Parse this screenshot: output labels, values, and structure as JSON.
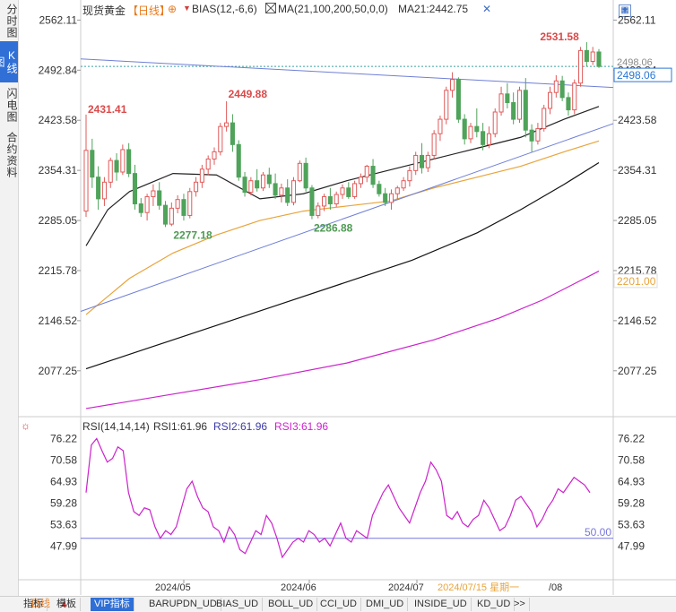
{
  "sidebar": {
    "tabs": [
      {
        "label": "分时图",
        "active": false
      },
      {
        "label": "K线图",
        "active": true
      },
      {
        "label": "闪电图",
        "active": false
      },
      {
        "label": "合约资料",
        "active": false
      }
    ]
  },
  "toolbar": {
    "symbol": "现货黄金",
    "period": "【日线】",
    "bias_label": "BIAS(12,-6,6)",
    "ma_label": "MA(21,100,200,50,0,0)",
    "ma21_label": "MA21:2442.75",
    "icons": [
      "plus-square-icon",
      "minus-square-icon",
      "window-icon",
      "grid-icon",
      "close-icon"
    ]
  },
  "price_axis": {
    "ticks": [
      "2562.11",
      "2492.84",
      "2423.58",
      "2354.31",
      "2285.05",
      "2215.78",
      "2146.52",
      "2077.25"
    ],
    "current_price": "2498.06",
    "current_price_color": "#2a77d6",
    "hidden_price": "2498.06",
    "line_price": "2201.00",
    "line_price_color": "#e8a43a"
  },
  "price_annotations": [
    {
      "text": "2431.41",
      "color": "#d94a4a"
    },
    {
      "text": "2449.88",
      "color": "#d94a4a"
    },
    {
      "text": "2277.18",
      "color": "#4e9a53"
    },
    {
      "text": "2286.88",
      "color": "#4e9a53"
    },
    {
      "text": "2531.58",
      "color": "#d94a4a"
    }
  ],
  "rsi_panel": {
    "label": "RSI(14,14,14)",
    "rsi1": "RSI1:61.96",
    "rsi2": "RSI2:61.96",
    "rsi3": "RSI3:61.96",
    "ticks": [
      "76.22",
      "70.58",
      "64.93",
      "59.28",
      "53.63",
      "47.99"
    ],
    "level_label": "50.00",
    "rsi_color": "#cc22cc",
    "level_color": "#7777dd"
  },
  "date_axis": {
    "labels": [
      "2024/05",
      "2024/06",
      "2024/07",
      "2024/07/15 星期一",
      "/08"
    ]
  },
  "bottom_bar": {
    "period": "日线",
    "tabs": [
      "指标",
      "模板",
      "VIP指标",
      "BARUPDN_UD",
      "BIAS_UD",
      "BOLL_UD",
      "CCI_UD",
      "DMI_UD",
      "INSIDE_UD",
      "KD_UD",
      ">>"
    ]
  },
  "chart_data": [
    {
      "type": "candlestick",
      "title": "现货黄金 日线",
      "ylim": [
        2020,
        2575
      ],
      "up_color": "#e05a5a",
      "down_color": "#4fa35a",
      "candles": [
        [
          2298,
          2431.41,
          2290,
          2382
        ],
        [
          2382,
          2398,
          2330,
          2345
        ],
        [
          2345,
          2360,
          2300,
          2315
        ],
        [
          2315,
          2345,
          2305,
          2338
        ],
        [
          2338,
          2372,
          2330,
          2368
        ],
        [
          2368,
          2378,
          2340,
          2352
        ],
        [
          2352,
          2390,
          2348,
          2383
        ],
        [
          2383,
          2392,
          2345,
          2350
        ],
        [
          2350,
          2362,
          2300,
          2308
        ],
        [
          2308,
          2316,
          2290,
          2296
        ],
        [
          2296,
          2322,
          2285,
          2318
        ],
        [
          2318,
          2335,
          2305,
          2326
        ],
        [
          2326,
          2338,
          2300,
          2306
        ],
        [
          2306,
          2312,
          2276,
          2280
        ],
        [
          2280,
          2310,
          2277.18,
          2302
        ],
        [
          2302,
          2320,
          2295,
          2314
        ],
        [
          2314,
          2322,
          2285,
          2292
        ],
        [
          2292,
          2330,
          2288,
          2325
        ],
        [
          2325,
          2345,
          2318,
          2338
        ],
        [
          2338,
          2362,
          2330,
          2356
        ],
        [
          2356,
          2375,
          2348,
          2370
        ],
        [
          2370,
          2386,
          2362,
          2380
        ],
        [
          2380,
          2420,
          2375,
          2415
        ],
        [
          2415,
          2449.88,
          2408,
          2420
        ],
        [
          2420,
          2432,
          2380,
          2390
        ],
        [
          2390,
          2396,
          2340,
          2345
        ],
        [
          2345,
          2352,
          2318,
          2324
        ],
        [
          2324,
          2345,
          2320,
          2340
        ],
        [
          2340,
          2356,
          2325,
          2330
        ],
        [
          2330,
          2352,
          2326,
          2348
        ],
        [
          2348,
          2358,
          2330,
          2336
        ],
        [
          2336,
          2350,
          2315,
          2320
        ],
        [
          2320,
          2336,
          2310,
          2330
        ],
        [
          2330,
          2342,
          2305,
          2310
        ],
        [
          2310,
          2345,
          2306,
          2340
        ],
        [
          2340,
          2368,
          2338,
          2364
        ],
        [
          2364,
          2372,
          2325,
          2330
        ],
        [
          2330,
          2334,
          2286.88,
          2292
        ],
        [
          2292,
          2310,
          2288,
          2305
        ],
        [
          2305,
          2322,
          2298,
          2318
        ],
        [
          2318,
          2330,
          2300,
          2308
        ],
        [
          2308,
          2325,
          2304,
          2321
        ],
        [
          2321,
          2335,
          2315,
          2330
        ],
        [
          2330,
          2338,
          2315,
          2318
        ],
        [
          2318,
          2340,
          2315,
          2336
        ],
        [
          2336,
          2350,
          2330,
          2345
        ],
        [
          2345,
          2362,
          2338,
          2360
        ],
        [
          2360,
          2370,
          2330,
          2335
        ],
        [
          2335,
          2340,
          2318,
          2322
        ],
        [
          2322,
          2330,
          2305,
          2310
        ],
        [
          2310,
          2328,
          2300,
          2322
        ],
        [
          2322,
          2333,
          2315,
          2330
        ],
        [
          2330,
          2345,
          2326,
          2340
        ],
        [
          2340,
          2360,
          2332,
          2354
        ],
        [
          2354,
          2380,
          2348,
          2375
        ],
        [
          2375,
          2392,
          2350,
          2358
        ],
        [
          2358,
          2380,
          2352,
          2375
        ],
        [
          2375,
          2410,
          2370,
          2405
        ],
        [
          2405,
          2430,
          2395,
          2425
        ],
        [
          2425,
          2470,
          2418,
          2465
        ],
        [
          2465,
          2490,
          2455,
          2480
        ],
        [
          2480,
          2483,
          2420,
          2425
        ],
        [
          2425,
          2432,
          2390,
          2398
        ],
        [
          2398,
          2420,
          2392,
          2415
        ],
        [
          2415,
          2440,
          2400,
          2408
        ],
        [
          2408,
          2420,
          2382,
          2390
        ],
        [
          2390,
          2415,
          2385,
          2405
        ],
        [
          2405,
          2440,
          2400,
          2435
        ],
        [
          2435,
          2470,
          2430,
          2460
        ],
        [
          2460,
          2475,
          2440,
          2448
        ],
        [
          2448,
          2462,
          2418,
          2425
        ],
        [
          2425,
          2470,
          2420,
          2465
        ],
        [
          2465,
          2482,
          2400,
          2410
        ],
        [
          2410,
          2418,
          2380,
          2395
        ],
        [
          2395,
          2420,
          2390,
          2412
        ],
        [
          2412,
          2445,
          2408,
          2440
        ],
        [
          2440,
          2470,
          2432,
          2462
        ],
        [
          2462,
          2486,
          2455,
          2478
        ],
        [
          2478,
          2485,
          2450,
          2455
        ],
        [
          2455,
          2462,
          2430,
          2438
        ],
        [
          2438,
          2480,
          2432,
          2475
        ],
        [
          2475,
          2525,
          2470,
          2520
        ],
        [
          2520,
          2531.58,
          2498,
          2505
        ],
        [
          2505,
          2525,
          2500,
          2518
        ],
        [
          2518,
          2522,
          2496,
          2498
        ]
      ]
    },
    {
      "type": "line",
      "name": "MA21",
      "ylim": [
        2020,
        2575
      ],
      "series": [
        {
          "name": "MA21",
          "color": "#222222",
          "x_start": 0,
          "points": [
            [
              0,
              2250
            ],
            [
              5,
              2300
            ],
            [
              10,
              2325
            ],
            [
              20,
              2350
            ],
            [
              30,
              2348
            ],
            [
              40,
              2315
            ],
            [
              50,
              2322
            ],
            [
              60,
              2340
            ],
            [
              70,
              2355
            ],
            [
              80,
              2370
            ],
            [
              90,
              2385
            ],
            [
              100,
              2400
            ],
            [
              110,
              2425
            ],
            [
              118,
              2442.75
            ]
          ]
        },
        {
          "name": "MA50",
          "color": "#e8a43a",
          "x_start": 0,
          "points": [
            [
              0,
              2155
            ],
            [
              10,
              2205
            ],
            [
              20,
              2240
            ],
            [
              30,
              2265
            ],
            [
              40,
              2285
            ],
            [
              50,
              2298
            ],
            [
              60,
              2305
            ],
            [
              70,
              2312
            ],
            [
              80,
              2330
            ],
            [
              90,
              2345
            ],
            [
              100,
              2360
            ],
            [
              110,
              2380
            ],
            [
              118,
              2395
            ]
          ]
        },
        {
          "name": "MA100",
          "color": "#111111",
          "x_start": 0,
          "points": [
            [
              0,
              2080
            ],
            [
              15,
              2110
            ],
            [
              30,
              2140
            ],
            [
              45,
              2170
            ],
            [
              60,
              2200
            ],
            [
              75,
              2230
            ],
            [
              90,
              2268
            ],
            [
              100,
              2300
            ],
            [
              110,
              2335
            ],
            [
              118,
              2365
            ]
          ]
        },
        {
          "name": "MA200",
          "color": "#cc22cc",
          "x_start": 0,
          "points": [
            [
              0,
              2025
            ],
            [
              20,
              2045
            ],
            [
              40,
              2065
            ],
            [
              60,
              2088
            ],
            [
              80,
              2120
            ],
            [
              95,
              2150
            ],
            [
              105,
              2175
            ],
            [
              118,
              2215
            ]
          ]
        }
      ]
    },
    {
      "type": "line",
      "name": "trendlines",
      "series": [
        {
          "name": "resistance",
          "color": "#6f7fd6",
          "points": [
            [
              0,
              2508
            ],
            [
              118,
              2470
            ]
          ]
        },
        {
          "name": "support",
          "color": "#6f7fd6",
          "points": [
            [
              0,
              2162
            ],
            [
              118,
              2412
            ]
          ]
        }
      ]
    },
    {
      "type": "line",
      "name": "RSI(14,14,14)",
      "ylim": [
        45,
        77
      ],
      "series": [
        {
          "name": "RSI1",
          "color": "#cc22cc",
          "values": [
            62,
            74.5,
            76.2,
            73,
            70,
            71,
            74,
            73,
            62,
            57,
            56,
            58,
            57.5,
            53,
            50,
            52,
            51,
            53,
            58,
            63,
            65,
            61,
            58,
            57,
            53,
            52,
            49,
            53,
            51,
            47,
            46,
            49,
            52,
            51,
            56,
            54,
            50,
            45,
            47,
            49,
            50,
            49,
            52,
            51,
            49,
            50,
            48,
            51,
            54,
            50,
            49,
            52,
            51,
            50,
            56,
            59,
            62,
            64,
            61,
            58,
            56,
            54,
            58,
            62,
            65,
            70,
            68,
            65,
            56,
            55,
            57,
            54,
            53,
            55,
            56,
            60,
            58,
            55,
            52,
            53,
            56,
            60,
            61,
            59,
            57,
            53,
            55,
            58,
            60,
            63,
            62,
            64,
            66,
            65,
            64,
            62
          ]
        }
      ],
      "level": 50
    }
  ]
}
